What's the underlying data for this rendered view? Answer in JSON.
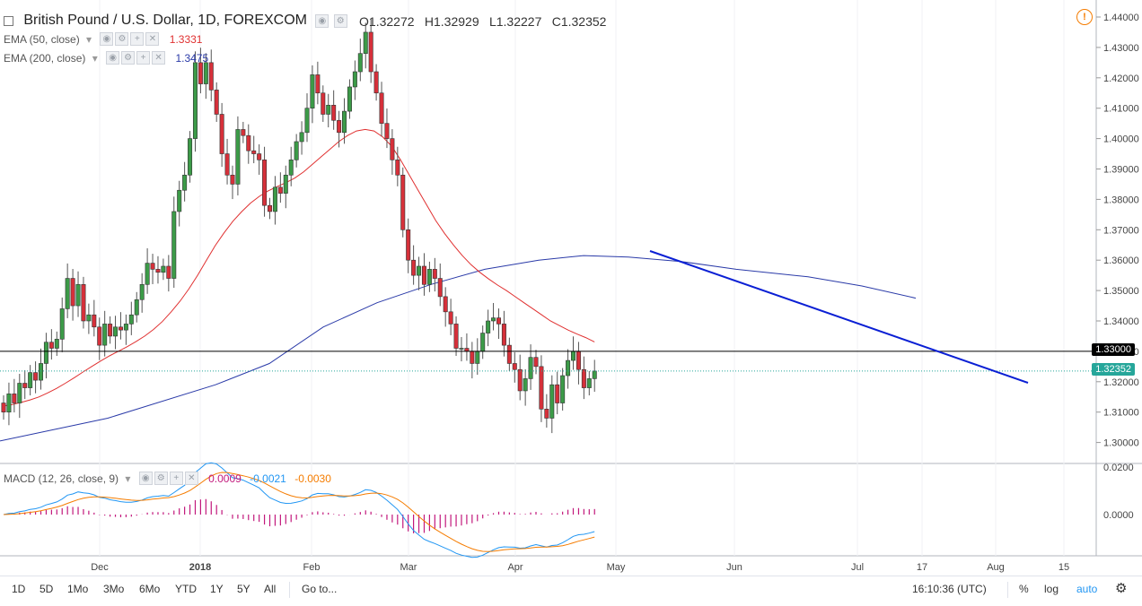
{
  "header": {
    "title": "British Pound / U.S. Dollar, 1D, FOREXCOM",
    "ohlc": [
      {
        "k": "O",
        "v": "1.32272"
      },
      {
        "k": "H",
        "v": "1.32929"
      },
      {
        "k": "L",
        "v": "1.32227"
      },
      {
        "k": "C",
        "v": "1.32352"
      }
    ],
    "ema50": {
      "label": "EMA (50, close)",
      "value": "1.3331",
      "color": "#e03030"
    },
    "ema200": {
      "label": "EMA (200, close)",
      "value": "1.3475",
      "color": "#2a3aa8"
    }
  },
  "macd": {
    "label": "MACD (12, 26, close, 9)",
    "values": [
      {
        "v": "0.0009",
        "color": "#c2187c"
      },
      {
        "v": "-0.0021",
        "color": "#2196f3"
      },
      {
        "v": "-0.0030",
        "color": "#f57c00"
      }
    ],
    "axis": [
      "0.0200",
      "0.0000"
    ]
  },
  "price_axis": [
    "1.44000",
    "1.43000",
    "1.42000",
    "1.41000",
    "1.40000",
    "1.39000",
    "1.38000",
    "1.37000",
    "1.36000",
    "1.35000",
    "1.34000",
    "1.33000",
    "1.32000",
    "1.31000",
    "1.30000"
  ],
  "price_tags": {
    "level": {
      "label": "1.33000",
      "color": "#000000"
    },
    "last": {
      "label": "1.32352",
      "color": "#26a69a"
    }
  },
  "time_axis": [
    "Dec",
    "2018",
    "Feb",
    "Mar",
    "Apr",
    "May",
    "Jun",
    "Jul",
    "17",
    "Aug",
    "15"
  ],
  "bottom_bar": {
    "ranges": [
      "1D",
      "5D",
      "1Mo",
      "3Mo",
      "6Mo",
      "YTD",
      "1Y",
      "5Y",
      "All"
    ],
    "goto": "Go to...",
    "clock": "16:10:36 (UTC)",
    "percent": "%",
    "log": "log",
    "auto": "auto"
  },
  "chart_data": {
    "type": "candlestick",
    "symbol": "GBPUSD",
    "ylim": [
      1.295,
      1.445
    ],
    "horizontal_level": 1.33,
    "last_price": 1.32352,
    "closes": [
      1.31,
      1.316,
      1.313,
      1.3195,
      1.318,
      1.323,
      1.3205,
      1.326,
      1.333,
      1.331,
      1.334,
      1.344,
      1.354,
      1.345,
      1.352,
      1.34,
      1.342,
      1.338,
      1.332,
      1.339,
      1.335,
      1.338,
      1.337,
      1.339,
      1.342,
      1.347,
      1.352,
      1.359,
      1.357,
      1.356,
      1.358,
      1.354,
      1.376,
      1.383,
      1.388,
      1.4,
      1.425,
      1.418,
      1.425,
      1.416,
      1.408,
      1.395,
      1.388,
      1.385,
      1.403,
      1.401,
      1.396,
      1.395,
      1.393,
      1.378,
      1.376,
      1.384,
      1.382,
      1.388,
      1.393,
      1.399,
      1.402,
      1.41,
      1.421,
      1.415,
      1.408,
      1.411,
      1.406,
      1.402,
      1.409,
      1.417,
      1.422,
      1.428,
      1.435,
      1.422,
      1.415,
      1.405,
      1.4,
      1.393,
      1.388,
      1.37,
      1.36,
      1.355,
      1.358,
      1.352,
      1.357,
      1.354,
      1.348,
      1.343,
      1.339,
      1.331,
      1.331,
      1.33,
      1.326,
      1.33,
      1.336,
      1.34,
      1.341,
      1.339,
      1.332,
      1.326,
      1.324,
      1.317,
      1.321,
      1.328,
      1.325,
      1.311,
      1.308,
      1.319,
      1.313,
      1.322,
      1.327,
      1.33,
      1.324,
      1.318,
      1.321,
      1.3235
    ],
    "ema50": [
      1.312,
      1.3125,
      1.3132,
      1.314,
      1.315,
      1.3163,
      1.3178,
      1.3195,
      1.3213,
      1.3232,
      1.325,
      1.3268,
      1.3285,
      1.33,
      1.3315,
      1.3332,
      1.335,
      1.3372,
      1.3398,
      1.343,
      1.3465,
      1.3505,
      1.355,
      1.36,
      1.3648,
      1.369,
      1.3728,
      1.376,
      1.3788,
      1.381,
      1.3828,
      1.3842,
      1.3855,
      1.387,
      1.389,
      1.3915,
      1.394,
      1.3965,
      1.399,
      1.401,
      1.4025,
      1.403,
      1.4025,
      1.4005,
      1.3975,
      1.393,
      1.388,
      1.383,
      1.378,
      1.373,
      1.3688,
      1.365,
      1.3615,
      1.3585,
      1.356,
      1.3538,
      1.3518,
      1.35,
      1.348,
      1.346,
      1.344,
      1.342,
      1.34,
      1.3385,
      1.337,
      1.3357,
      1.3345,
      1.3331
    ]
  }
}
